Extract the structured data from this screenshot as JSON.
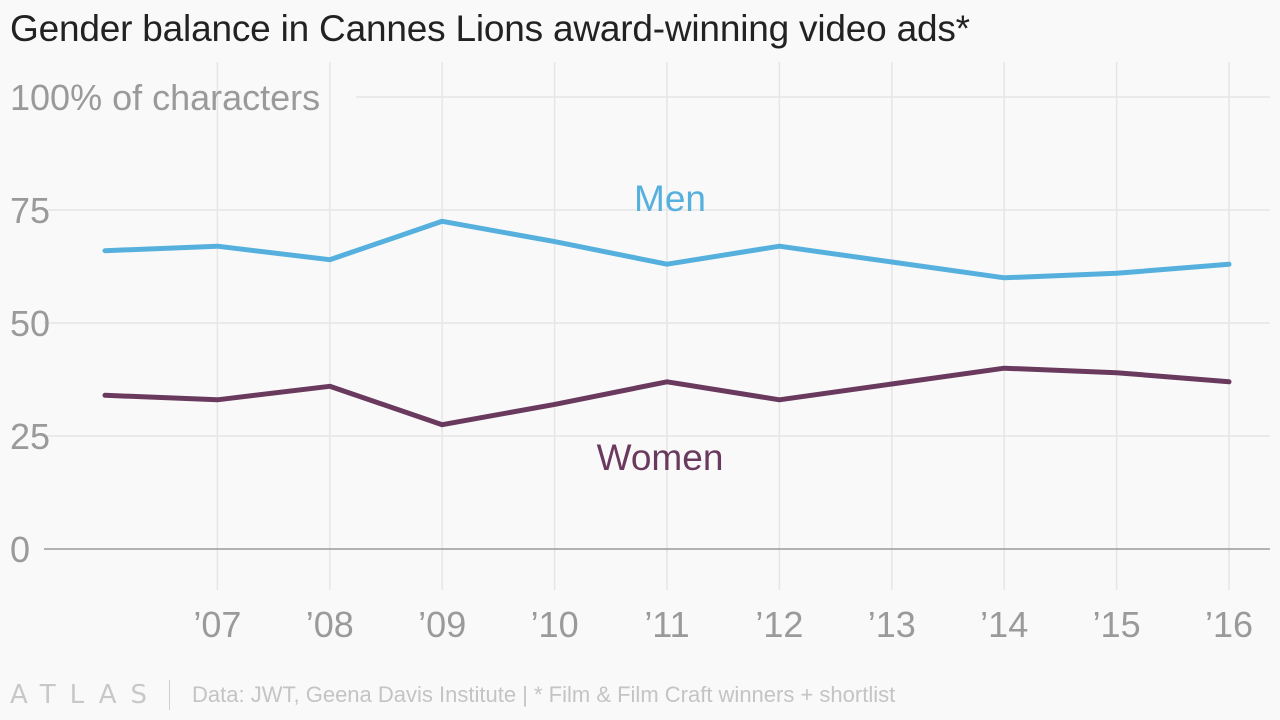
{
  "title": "Gender balance in Cannes Lions award-winning video ads*",
  "logo_text": "ATLAS",
  "source_text": "Data: JWT, Geena Davis Institute | * Film & Film Craft winners + shortlist",
  "colors": {
    "men": "#56b0de",
    "women": "#6a3a5e",
    "grid": "#e6e6e6",
    "axis": "#9a9a9a",
    "tick_text": "#9a9a9a"
  },
  "chart_data": {
    "type": "line",
    "x": [
      2006,
      2007,
      2008,
      2009,
      2010,
      2011,
      2012,
      2013,
      2014,
      2015,
      2016
    ],
    "x_tick_labels": [
      "’07",
      "’08",
      "’09",
      "’10",
      "’11",
      "’12",
      "’13",
      "’14",
      "’15",
      "’16"
    ],
    "x_tick_values": [
      2007,
      2008,
      2009,
      2010,
      2011,
      2012,
      2013,
      2014,
      2015,
      2016
    ],
    "y_tick_values": [
      0,
      25,
      50,
      75,
      100
    ],
    "y_tick_labels": [
      "0",
      "25",
      "50",
      "75",
      "100% of characters"
    ],
    "ylim": [
      0,
      100
    ],
    "xlim": [
      2006,
      2016
    ],
    "grid": true,
    "series": [
      {
        "name": "Men",
        "key": "men",
        "values": [
          66,
          67,
          64,
          72.5,
          68,
          63,
          67,
          63.5,
          60,
          61,
          63
        ]
      },
      {
        "name": "Women",
        "key": "women",
        "values": [
          34,
          33,
          36,
          27.5,
          32,
          37,
          33,
          36.5,
          40,
          39,
          37
        ]
      }
    ]
  }
}
